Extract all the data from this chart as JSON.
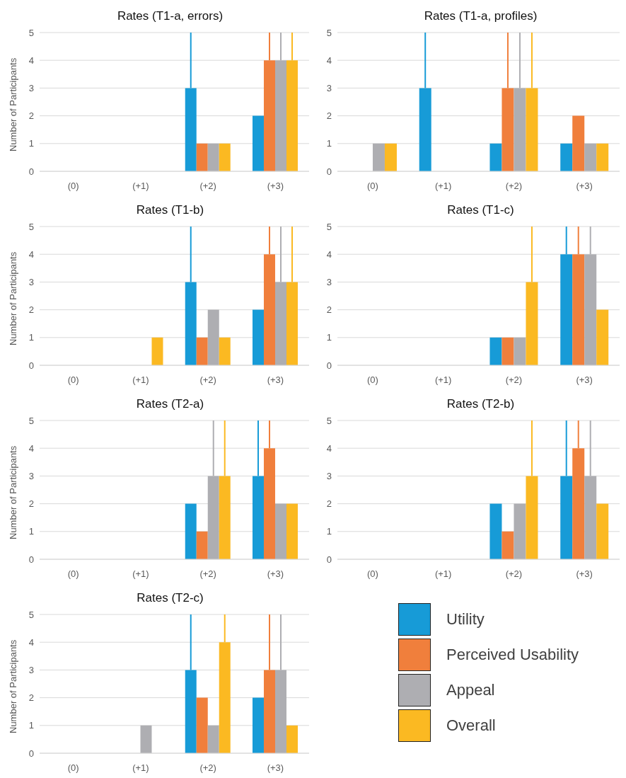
{
  "chart_data": [
    {
      "type": "bar",
      "title": "Rates (T1-a, errors)",
      "ylabel": "Number of Participants",
      "categories": [
        "(0)",
        "(+1)",
        "(+2)",
        "(+3)"
      ],
      "ylim": [
        0,
        5
      ],
      "yticks": [
        0,
        1,
        2,
        3,
        4,
        5
      ],
      "grid": "y",
      "series": [
        {
          "color": "#179bd7",
          "values": [
            0,
            0,
            3,
            2
          ],
          "errors": [
            null,
            null,
            [
              3,
              5
            ],
            null
          ]
        },
        {
          "color": "#f07f3c",
          "values": [
            0,
            0,
            1,
            4
          ],
          "errors": [
            null,
            null,
            null,
            [
              4,
              5
            ]
          ]
        },
        {
          "color": "#aeaeb2",
          "values": [
            0,
            0,
            1,
            4
          ],
          "errors": [
            null,
            null,
            null,
            [
              4,
              5
            ]
          ]
        },
        {
          "color": "#fbb922",
          "values": [
            0,
            0,
            1,
            4
          ],
          "errors": [
            null,
            null,
            null,
            [
              4,
              5
            ]
          ]
        }
      ]
    },
    {
      "type": "bar",
      "title": "Rates (T1-a, profiles)",
      "categories": [
        "(0)",
        "(+1)",
        "(+2)",
        "(+3)"
      ],
      "ylim": [
        0,
        5
      ],
      "yticks": [
        0,
        1,
        2,
        3,
        4,
        5
      ],
      "grid": "y",
      "series": [
        {
          "color": "#179bd7",
          "values": [
            0,
            3,
            1,
            1
          ],
          "errors": [
            null,
            [
              3,
              5
            ],
            null,
            null
          ]
        },
        {
          "color": "#f07f3c",
          "values": [
            0,
            0,
            3,
            2
          ],
          "errors": [
            null,
            null,
            [
              3,
              5
            ],
            null
          ]
        },
        {
          "color": "#aeaeb2",
          "values": [
            1,
            0,
            3,
            1
          ],
          "errors": [
            null,
            null,
            [
              3,
              5
            ],
            null
          ]
        },
        {
          "color": "#fbb922",
          "values": [
            1,
            0,
            3,
            1
          ],
          "errors": [
            null,
            null,
            [
              3,
              5
            ],
            null
          ]
        }
      ]
    },
    {
      "type": "bar",
      "title": "Rates (T1-b)",
      "ylabel": "Number of Participants",
      "categories": [
        "(0)",
        "(+1)",
        "(+2)",
        "(+3)"
      ],
      "ylim": [
        0,
        5
      ],
      "yticks": [
        0,
        1,
        2,
        3,
        4,
        5
      ],
      "grid": "y",
      "series": [
        {
          "color": "#179bd7",
          "values": [
            0,
            0,
            3,
            2
          ],
          "errors": [
            null,
            null,
            [
              3,
              5
            ],
            null
          ]
        },
        {
          "color": "#f07f3c",
          "values": [
            0,
            0,
            1,
            4
          ],
          "errors": [
            null,
            null,
            null,
            [
              4,
              5
            ]
          ]
        },
        {
          "color": "#aeaeb2",
          "values": [
            0,
            0,
            2,
            3
          ],
          "errors": [
            null,
            null,
            null,
            [
              3,
              5
            ]
          ]
        },
        {
          "color": "#fbb922",
          "values": [
            0,
            1,
            1,
            3
          ],
          "errors": [
            null,
            null,
            null,
            [
              3,
              5
            ]
          ]
        }
      ]
    },
    {
      "type": "bar",
      "title": "Rates (T1-c)",
      "categories": [
        "(0)",
        "(+1)",
        "(+2)",
        "(+3)"
      ],
      "ylim": [
        0,
        5
      ],
      "yticks": [
        0,
        1,
        2,
        3,
        4,
        5
      ],
      "grid": "y",
      "series": [
        {
          "color": "#179bd7",
          "values": [
            0,
            0,
            1,
            4
          ],
          "errors": [
            null,
            null,
            null,
            [
              4,
              5
            ]
          ]
        },
        {
          "color": "#f07f3c",
          "values": [
            0,
            0,
            1,
            4
          ],
          "errors": [
            null,
            null,
            null,
            [
              4,
              5
            ]
          ]
        },
        {
          "color": "#aeaeb2",
          "values": [
            0,
            0,
            1,
            4
          ],
          "errors": [
            null,
            null,
            null,
            [
              4,
              5
            ]
          ]
        },
        {
          "color": "#fbb922",
          "values": [
            0,
            0,
            3,
            2
          ],
          "errors": [
            null,
            null,
            [
              3,
              5
            ],
            null
          ]
        }
      ]
    },
    {
      "type": "bar",
      "title": "Rates (T2-a)",
      "ylabel": "Number of Participants",
      "categories": [
        "(0)",
        "(+1)",
        "(+2)",
        "(+3)"
      ],
      "ylim": [
        0,
        5
      ],
      "yticks": [
        0,
        1,
        2,
        3,
        4,
        5
      ],
      "grid": "y",
      "series": [
        {
          "color": "#179bd7",
          "values": [
            0,
            0,
            2,
            3
          ],
          "errors": [
            null,
            null,
            null,
            [
              3,
              5
            ]
          ]
        },
        {
          "color": "#f07f3c",
          "values": [
            0,
            0,
            1,
            4
          ],
          "errors": [
            null,
            null,
            null,
            [
              4,
              5
            ]
          ]
        },
        {
          "color": "#aeaeb2",
          "values": [
            0,
            0,
            3,
            2
          ],
          "errors": [
            null,
            null,
            [
              3,
              5
            ],
            null
          ]
        },
        {
          "color": "#fbb922",
          "values": [
            0,
            0,
            3,
            2
          ],
          "errors": [
            null,
            null,
            [
              3,
              5
            ],
            null
          ]
        }
      ]
    },
    {
      "type": "bar",
      "title": "Rates (T2-b)",
      "categories": [
        "(0)",
        "(+1)",
        "(+2)",
        "(+3)"
      ],
      "ylim": [
        0,
        5
      ],
      "yticks": [
        0,
        1,
        2,
        3,
        4,
        5
      ],
      "grid": "y",
      "series": [
        {
          "color": "#179bd7",
          "values": [
            0,
            0,
            2,
            3
          ],
          "errors": [
            null,
            null,
            null,
            [
              3,
              5
            ]
          ]
        },
        {
          "color": "#f07f3c",
          "values": [
            0,
            0,
            1,
            4
          ],
          "errors": [
            null,
            null,
            null,
            [
              4,
              5
            ]
          ]
        },
        {
          "color": "#aeaeb2",
          "values": [
            0,
            0,
            2,
            3
          ],
          "errors": [
            null,
            null,
            null,
            [
              3,
              5
            ]
          ]
        },
        {
          "color": "#fbb922",
          "values": [
            0,
            0,
            3,
            2
          ],
          "errors": [
            null,
            null,
            [
              3,
              5
            ],
            null
          ]
        }
      ]
    },
    {
      "type": "bar",
      "title": "Rates (T2-c)",
      "ylabel": "Number of Participants",
      "categories": [
        "(0)",
        "(+1)",
        "(+2)",
        "(+3)"
      ],
      "ylim": [
        0,
        5
      ],
      "yticks": [
        0,
        1,
        2,
        3,
        4,
        5
      ],
      "grid": "y",
      "legend": "right",
      "series": [
        {
          "name": "Utility",
          "color": "#179bd7",
          "values": [
            0,
            0,
            3,
            2
          ],
          "errors": [
            null,
            null,
            [
              3,
              5
            ],
            null
          ]
        },
        {
          "name": "Perceived Usability",
          "color": "#f07f3c",
          "values": [
            0,
            0,
            2,
            3
          ],
          "errors": [
            null,
            null,
            null,
            [
              3,
              5
            ]
          ]
        },
        {
          "name": "Appeal",
          "color": "#aeaeb2",
          "values": [
            0,
            1,
            1,
            3
          ],
          "errors": [
            null,
            null,
            null,
            [
              3,
              5
            ]
          ]
        },
        {
          "name": "Overall",
          "color": "#fbb922",
          "values": [
            0,
            0,
            4,
            1
          ],
          "errors": [
            null,
            null,
            [
              4,
              5
            ],
            null
          ]
        }
      ]
    }
  ]
}
